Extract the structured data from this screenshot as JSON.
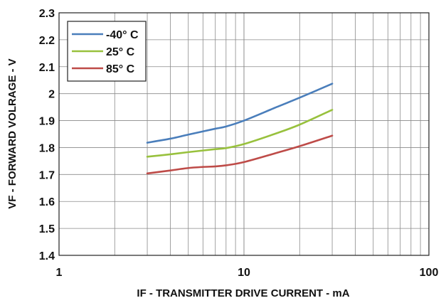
{
  "chart_data": {
    "type": "line",
    "xlabel": "IF - TRANSMITTER DRIVE CURRENT - mA",
    "ylabel": "VF - FORWARD VOLRAGE - V",
    "xscale": "log",
    "xlim": [
      1,
      100
    ],
    "ylim": [
      1.4,
      2.3
    ],
    "x_ticks": [
      1,
      10,
      100
    ],
    "x_tick_labels": [
      "1",
      "10",
      "100"
    ],
    "y_ticks": [
      1.4,
      1.5,
      1.6,
      1.7,
      1.8,
      1.9,
      2,
      2.1,
      2.2,
      2.3
    ],
    "y_tick_labels": [
      "1.4",
      "1.5",
      "1.6",
      "1.7",
      "1.8",
      "1.9",
      "2",
      "2.1",
      "2.2",
      "2.3"
    ],
    "grid": true,
    "legend_position": "top-left",
    "series": [
      {
        "name": "-40° C",
        "color": "#4a7ebb",
        "x": [
          3,
          4,
          5,
          6,
          7,
          8,
          10,
          15,
          20,
          30
        ],
        "y": [
          1.818,
          1.833,
          1.848,
          1.86,
          1.87,
          1.878,
          1.9,
          1.95,
          1.985,
          2.037
        ]
      },
      {
        "name": "25° C",
        "color": "#98c13d",
        "x": [
          3,
          4,
          5,
          6,
          7,
          8,
          10,
          15,
          20,
          30
        ],
        "y": [
          1.766,
          1.775,
          1.783,
          1.789,
          1.794,
          1.798,
          1.813,
          1.853,
          1.885,
          1.94
        ]
      },
      {
        "name": "85° C",
        "color": "#be4b48",
        "x": [
          3,
          4,
          5,
          6,
          7,
          8,
          10,
          15,
          20,
          30
        ],
        "y": [
          1.704,
          1.715,
          1.724,
          1.728,
          1.73,
          1.734,
          1.746,
          1.78,
          1.805,
          1.844
        ]
      }
    ]
  }
}
